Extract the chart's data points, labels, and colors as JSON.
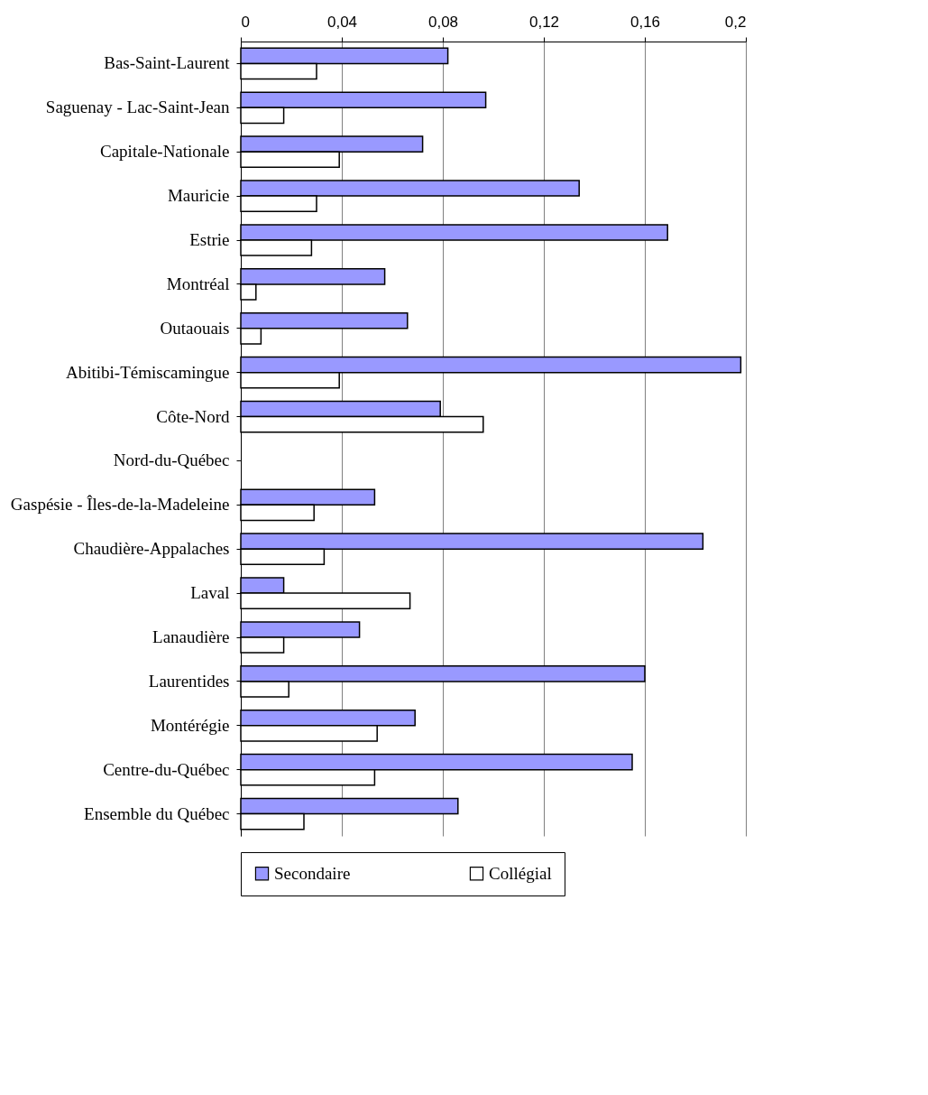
{
  "chart_data": {
    "type": "bar",
    "orientation": "horizontal",
    "categories": [
      "Bas-Saint-Laurent",
      "Saguenay - Lac-Saint-Jean",
      "Capitale-Nationale",
      "Mauricie",
      "Estrie",
      "Montréal",
      "Outaouais",
      "Abitibi-Témiscamingue",
      "Côte-Nord",
      "Nord-du-Québec",
      "Gaspésie - Îles-de-la-Madeleine",
      "Chaudière-Appalaches",
      "Laval",
      "Lanaudière",
      "Laurentides",
      "Montérégie",
      "Centre-du-Québec",
      "Ensemble du Québec"
    ],
    "series": [
      {
        "name": "Secondaire",
        "color": "#9999ff",
        "values": [
          0.082,
          0.097,
          0.072,
          0.134,
          0.169,
          0.057,
          0.066,
          0.198,
          0.079,
          null,
          0.053,
          0.183,
          0.017,
          0.047,
          0.16,
          0.069,
          0.155,
          0.086
        ]
      },
      {
        "name": "Collégial",
        "color": "#ffffff",
        "values": [
          0.03,
          0.017,
          0.039,
          0.03,
          0.028,
          0.006,
          0.008,
          0.039,
          0.096,
          null,
          0.029,
          0.033,
          0.067,
          0.017,
          0.019,
          0.054,
          0.053,
          0.025
        ]
      }
    ],
    "xlim": [
      0,
      0.2
    ],
    "xticks": [
      {
        "value": 0,
        "label": "0"
      },
      {
        "value": 0.04,
        "label": "0,04"
      },
      {
        "value": 0.08,
        "label": "0,08"
      },
      {
        "value": 0.12,
        "label": "0,12"
      },
      {
        "value": 0.16,
        "label": "0,16"
      },
      {
        "value": 0.2,
        "label": "0,2"
      }
    ],
    "grid": "x",
    "legend": "bottom"
  }
}
